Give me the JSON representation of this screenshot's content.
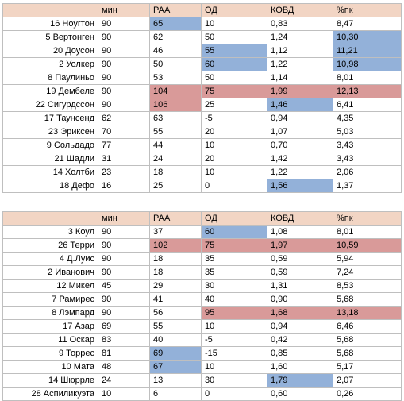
{
  "colors": {
    "header": "#f2d5c4",
    "blue": "#93b1d9",
    "red": "#d99a99",
    "grid": "#bfbfbf"
  },
  "tables": [
    {
      "headers": [
        "",
        "мин",
        "РАА",
        "ОД",
        "КОВД",
        "%пк"
      ],
      "rows": [
        {
          "cells": [
            "16 Ноугтон",
            "90",
            "65",
            "10",
            "0,83",
            "8,47"
          ],
          "hl": [
            null,
            null,
            "blue",
            null,
            null,
            null
          ]
        },
        {
          "cells": [
            "5 Вертонген",
            "90",
            "62",
            "50",
            "1,24",
            "10,30"
          ],
          "hl": [
            null,
            null,
            null,
            null,
            null,
            "blue"
          ]
        },
        {
          "cells": [
            "20 Доусон",
            "90",
            "46",
            "55",
            "1,12",
            "11,21"
          ],
          "hl": [
            null,
            null,
            null,
            "blue",
            null,
            "blue"
          ]
        },
        {
          "cells": [
            "2 Уолкер",
            "90",
            "50",
            "60",
            "1,22",
            "10,98"
          ],
          "hl": [
            null,
            null,
            null,
            "blue",
            null,
            "blue"
          ]
        },
        {
          "cells": [
            "8 Паулиньо",
            "90",
            "53",
            "50",
            "1,14",
            "8,01"
          ],
          "hl": [
            null,
            null,
            null,
            null,
            null,
            null
          ]
        },
        {
          "cells": [
            "19 Дембеле",
            "90",
            "104",
            "75",
            "1,99",
            "12,13"
          ],
          "hl": [
            null,
            null,
            "red",
            "red",
            "red",
            "red"
          ]
        },
        {
          "cells": [
            "22 Сигурдссон",
            "90",
            "106",
            "25",
            "1,46",
            "6,41"
          ],
          "hl": [
            null,
            null,
            "red",
            null,
            "blue",
            null
          ]
        },
        {
          "cells": [
            "17 Таунсенд",
            "62",
            "63",
            "-5",
            "0,94",
            "4,35"
          ],
          "hl": [
            null,
            null,
            null,
            null,
            null,
            null
          ]
        },
        {
          "cells": [
            "23 Эриксен",
            "70",
            "55",
            "20",
            "1,07",
            "5,03"
          ],
          "hl": [
            null,
            null,
            null,
            null,
            null,
            null
          ]
        },
        {
          "cells": [
            "9 Сольдадо",
            "77",
            "44",
            "10",
            "0,70",
            "3,43"
          ],
          "hl": [
            null,
            null,
            null,
            null,
            null,
            null
          ]
        },
        {
          "cells": [
            "21 Шадли",
            "31",
            "24",
            "20",
            "1,42",
            "3,43"
          ],
          "hl": [
            null,
            null,
            null,
            null,
            null,
            null
          ]
        },
        {
          "cells": [
            "14 Холтби",
            "23",
            "18",
            "10",
            "1,22",
            "2,06"
          ],
          "hl": [
            null,
            null,
            null,
            null,
            null,
            null
          ]
        },
        {
          "cells": [
            "18 Дефо",
            "16",
            "25",
            "0",
            "1,56",
            "1,37"
          ],
          "hl": [
            null,
            null,
            null,
            null,
            "blue",
            null
          ]
        }
      ]
    },
    {
      "headers": [
        "",
        "мин",
        "РАА",
        "ОД",
        "КОВД",
        "%пк"
      ],
      "rows": [
        {
          "cells": [
            "3 Коул",
            "90",
            "37",
            "60",
            "1,08",
            "8,01"
          ],
          "hl": [
            null,
            null,
            null,
            "blue",
            null,
            null
          ]
        },
        {
          "cells": [
            "26 Терри",
            "90",
            "102",
            "75",
            "1,97",
            "10,59"
          ],
          "hl": [
            null,
            null,
            "red",
            "red",
            "red",
            "red"
          ]
        },
        {
          "cells": [
            "4 Д.Луис",
            "90",
            "18",
            "35",
            "0,59",
            "5,94"
          ],
          "hl": [
            null,
            null,
            null,
            null,
            null,
            null
          ]
        },
        {
          "cells": [
            "2 Иванович",
            "90",
            "18",
            "35",
            "0,59",
            "7,24"
          ],
          "hl": [
            null,
            null,
            null,
            null,
            null,
            null
          ]
        },
        {
          "cells": [
            "12 Микел",
            "45",
            "29",
            "30",
            "1,31",
            "8,53"
          ],
          "hl": [
            null,
            null,
            null,
            null,
            null,
            null
          ]
        },
        {
          "cells": [
            "7 Рамирес",
            "90",
            "41",
            "40",
            "0,90",
            "5,68"
          ],
          "hl": [
            null,
            null,
            null,
            null,
            null,
            null
          ]
        },
        {
          "cells": [
            "8 Лэмпард",
            "90",
            "56",
            "95",
            "1,68",
            "13,18"
          ],
          "hl": [
            null,
            null,
            null,
            "red",
            "red",
            "red"
          ]
        },
        {
          "cells": [
            "17 Азар",
            "69",
            "55",
            "10",
            "0,94",
            "6,46"
          ],
          "hl": [
            null,
            null,
            null,
            null,
            null,
            null
          ]
        },
        {
          "cells": [
            "11 Оскар",
            "83",
            "40",
            "-5",
            "0,42",
            "5,68"
          ],
          "hl": [
            null,
            null,
            null,
            null,
            null,
            null
          ]
        },
        {
          "cells": [
            "9 Торрес",
            "81",
            "69",
            "-15",
            "0,85",
            "5,68"
          ],
          "hl": [
            null,
            null,
            "blue",
            null,
            null,
            null
          ]
        },
        {
          "cells": [
            "10 Мата",
            "48",
            "67",
            "10",
            "1,60",
            "5,17"
          ],
          "hl": [
            null,
            null,
            "blue",
            null,
            null,
            null
          ]
        },
        {
          "cells": [
            "14 Шюррле",
            "24",
            "13",
            "30",
            "1,79",
            "2,07"
          ],
          "hl": [
            null,
            null,
            null,
            null,
            "blue",
            null
          ]
        },
        {
          "cells": [
            "28 Аспиликуэта",
            "10",
            "6",
            "0",
            "0,60",
            "0,26"
          ],
          "hl": [
            null,
            null,
            null,
            null,
            null,
            null
          ]
        }
      ]
    }
  ]
}
